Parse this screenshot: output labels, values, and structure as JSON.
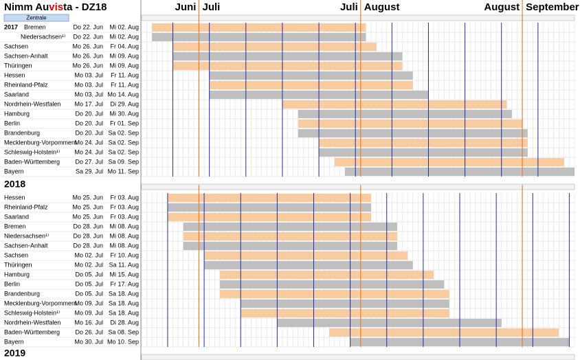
{
  "title_parts": [
    "Nimm Au",
    "vis",
    "ta - DZ18"
  ],
  "button": "Zentrale",
  "timeline": {
    "xlim": [
      171,
      254
    ],
    "month_lines": [
      182,
      213,
      244
    ],
    "month_labels": [
      [
        "Juni",
        "Juli"
      ],
      [
        "Juli",
        "August"
      ],
      [
        "August",
        "September"
      ]
    ]
  },
  "sections": [
    {
      "year": "2017",
      "week_lines": [
        177,
        184,
        191,
        198,
        205,
        212,
        219,
        226,
        233,
        240,
        247
      ],
      "rows": [
        {
          "state": "Bremen",
          "start_label": "Do 22. Jun",
          "end_label": "Mi 02. Aug",
          "start": 173,
          "end": 214
        },
        {
          "state": "Niedersachsen¹⁾",
          "start_label": "Do 22. Jun",
          "end_label": "Mi 02. Aug",
          "start": 173,
          "end": 214
        },
        {
          "state": "Sachsen",
          "start_label": "Mo 26. Jun",
          "end_label": "Fr 04. Aug",
          "start": 177,
          "end": 216
        },
        {
          "state": "Sachsen-Anhalt",
          "start_label": "Mo 26. Jun",
          "end_label": "Mi 09. Aug",
          "start": 177,
          "end": 221
        },
        {
          "state": "Thüringen",
          "start_label": "Mo 26. Jun",
          "end_label": "Mi 09. Aug",
          "start": 177,
          "end": 221
        },
        {
          "state": "Hessen",
          "start_label": "Mo 03. Jul",
          "end_label": "Fr 11. Aug",
          "start": 184,
          "end": 223
        },
        {
          "state": "Rheinland-Pfalz",
          "start_label": "Mo 03. Jul",
          "end_label": "Fr 11. Aug",
          "start": 184,
          "end": 223
        },
        {
          "state": "Saarland",
          "start_label": "Mo 03. Jul",
          "end_label": "Mo 14. Aug",
          "start": 184,
          "end": 226
        },
        {
          "state": "Nordrhein-Westfalen",
          "start_label": "Mo 17. Jul",
          "end_label": "Di 29. Aug",
          "start": 198,
          "end": 241
        },
        {
          "state": "Hamburg",
          "start_label": "Do 20. Jul",
          "end_label": "Mi 30. Aug",
          "start": 201,
          "end": 242
        },
        {
          "state": "Berlin",
          "start_label": "Do 20. Jul",
          "end_label": "Fr 01. Sep",
          "start": 201,
          "end": 244
        },
        {
          "state": "Brandenburg",
          "start_label": "Do 20. Jul",
          "end_label": "Sa 02. Sep",
          "start": 201,
          "end": 245
        },
        {
          "state": "Mecklenburg-Vorpommern",
          "start_label": "Mo 24. Jul",
          "end_label": "Sa 02. Sep",
          "start": 205,
          "end": 245
        },
        {
          "state": "Schleswig-Holstein¹⁾",
          "start_label": "Mo 24. Jul",
          "end_label": "Sa 02. Sep",
          "start": 205,
          "end": 245
        },
        {
          "state": "Baden-Württemberg",
          "start_label": "Do 27. Jul",
          "end_label": "Sa 09. Sep",
          "start": 208,
          "end": 252
        },
        {
          "state": "Bayern",
          "start_label": "Sa 29. Jul",
          "end_label": "Mo 11. Sep",
          "start": 210,
          "end": 254
        }
      ]
    },
    {
      "year": "2018",
      "week_lines": [
        176,
        183,
        190,
        197,
        204,
        211,
        218,
        225,
        232,
        239,
        246,
        253
      ],
      "rows": [
        {
          "state": "Hessen",
          "start_label": "Mo 25. Jun",
          "end_label": "Fr 03. Aug",
          "start": 176,
          "end": 215
        },
        {
          "state": "Rheinland-Pfalz",
          "start_label": "Mo 25. Jun",
          "end_label": "Fr 03. Aug",
          "start": 176,
          "end": 215
        },
        {
          "state": "Saarland",
          "start_label": "Mo 25. Jun",
          "end_label": "Fr 03. Aug",
          "start": 176,
          "end": 215
        },
        {
          "state": "Bremen",
          "start_label": "Do 28. Jun",
          "end_label": "Mi 08. Aug",
          "start": 179,
          "end": 220
        },
        {
          "state": "Niedersachsen¹⁾",
          "start_label": "Do 28. Jun",
          "end_label": "Mi 08. Aug",
          "start": 179,
          "end": 220
        },
        {
          "state": "Sachsen-Anhalt",
          "start_label": "Do 28. Jun",
          "end_label": "Mi 08. Aug",
          "start": 179,
          "end": 220
        },
        {
          "state": "Sachsen",
          "start_label": "Mo 02. Jul",
          "end_label": "Fr 10. Aug",
          "start": 183,
          "end": 222
        },
        {
          "state": "Thüringen",
          "start_label": "Mo 02. Jul",
          "end_label": "Sa 11. Aug",
          "start": 183,
          "end": 223
        },
        {
          "state": "Hamburg",
          "start_label": "Do 05. Jul",
          "end_label": "Mi 15. Aug",
          "start": 186,
          "end": 227
        },
        {
          "state": "Berlin",
          "start_label": "Do 05. Jul",
          "end_label": "Fr 17. Aug",
          "start": 186,
          "end": 229
        },
        {
          "state": "Brandenburg",
          "start_label": "Do 05. Jul",
          "end_label": "Sa 18. Aug",
          "start": 186,
          "end": 230
        },
        {
          "state": "Mecklenburg-Vorpommern",
          "start_label": "Mo 09. Jul",
          "end_label": "Sa 18. Aug",
          "start": 190,
          "end": 230
        },
        {
          "state": "Schleswig-Holstein¹⁾",
          "start_label": "Mo 09. Jul",
          "end_label": "Sa 18. Aug",
          "start": 190,
          "end": 230
        },
        {
          "state": "Nordrhein-Westfalen",
          "start_label": "Mo 16. Jul",
          "end_label": "Di 28. Aug",
          "start": 197,
          "end": 240
        },
        {
          "state": "Baden-Württemberg",
          "start_label": "Do 26. Jul",
          "end_label": "Sa 08. Sep",
          "start": 207,
          "end": 251
        },
        {
          "state": "Bayern",
          "start_label": "Mo 30. Jul",
          "end_label": "Mo 10. Sep",
          "start": 211,
          "end": 253
        }
      ]
    },
    {
      "year": "2019"
    }
  ]
}
